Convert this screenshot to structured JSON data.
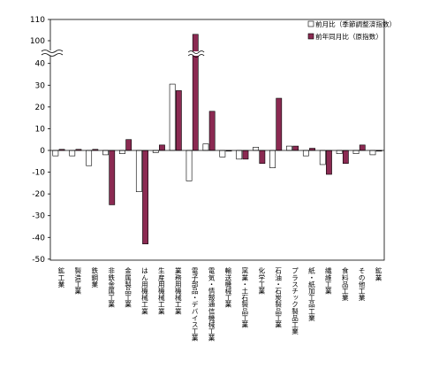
{
  "chart_data": {
    "type": "bar",
    "title": "",
    "xlabel": "",
    "ylabel": "",
    "ylim": [
      -50,
      110
    ],
    "axis_break": {
      "low": 40,
      "high": 100
    },
    "yticks": [
      {
        "label": "110",
        "value": 110
      },
      {
        "label": "100",
        "value": 100
      },
      {
        "label": "40",
        "value": 40
      },
      {
        "label": "30",
        "value": 30
      },
      {
        "label": "20",
        "value": 20
      },
      {
        "label": "10",
        "value": 10
      },
      {
        "label": "0",
        "value": 0
      },
      {
        "label": "-10",
        "value": -10
      },
      {
        "label": "-20",
        "value": -20
      },
      {
        "label": "-30",
        "value": -30
      },
      {
        "label": "-40",
        "value": -40
      },
      {
        "label": "-50",
        "value": -50
      }
    ],
    "grid": false,
    "legend_position": "top-right",
    "categories": [
      "鉱工業",
      "製造工業",
      "鉄鋼業",
      "非鉄金属工業",
      "金属製品工業",
      "はん用機械工業",
      "生産用機械工業",
      "業務用機械工業",
      "電子部品・デバイス工業",
      "電気・情報通信機械工業",
      "輸送機械工業",
      "窯業・土石製品工業",
      "化学工業",
      "石油・石炭製品工業",
      "プラスチック製品工業",
      "紙・紙加工品工業",
      "繊維工業",
      "食料品工業",
      "その他工業",
      "鉱業"
    ],
    "series": [
      {
        "name": "前月比（季節調整済指数）",
        "color": "#ffffff",
        "values": [
          -2.5,
          -2.5,
          -7,
          -2,
          -1.5,
          -19,
          -1,
          30.5,
          -14,
          3,
          -3,
          -4,
          1.5,
          -8,
          2,
          -2.5,
          -6.5,
          -1.5,
          -1.5,
          -2
        ]
      },
      {
        "name": "前年同月比（原指数）",
        "color": "#8b2a52",
        "values": [
          0.5,
          0.5,
          0.5,
          -25,
          5,
          -43,
          2.5,
          27.5,
          103,
          18,
          0,
          -4,
          -6,
          24,
          2,
          1,
          -11,
          -6,
          2.5,
          0
        ]
      }
    ]
  }
}
